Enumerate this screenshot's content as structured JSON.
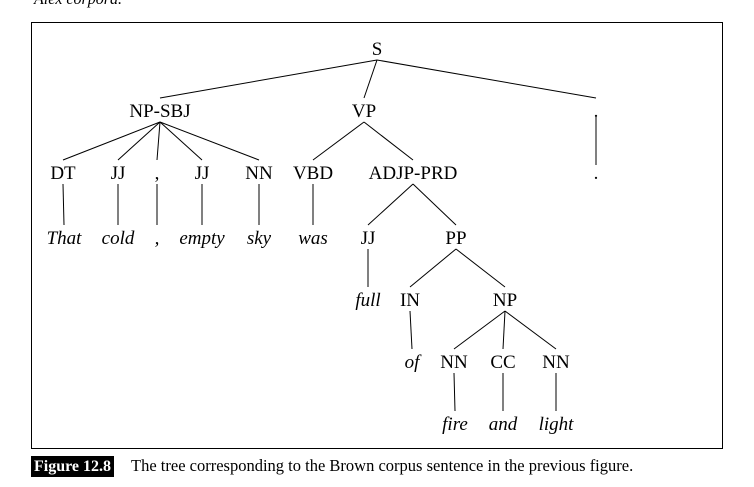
{
  "top_text": "Alex corpora.",
  "figure": {
    "label": "Figure 12.8",
    "caption": "The tree corresponding to the Brown corpus sentence in the previous figure."
  },
  "tree": {
    "nodes": [
      {
        "id": "s",
        "label": "S",
        "kind": "tag"
      },
      {
        "id": "np-sbj",
        "label": "NP-SBJ",
        "kind": "tag"
      },
      {
        "id": "vp",
        "label": "VP",
        "kind": "tag"
      },
      {
        "id": "period-top",
        "label": ".",
        "kind": "tag"
      },
      {
        "id": "dt",
        "label": "DT",
        "kind": "tag"
      },
      {
        "id": "jj1",
        "label": "JJ",
        "kind": "tag"
      },
      {
        "id": "comma-tag",
        "label": ",",
        "kind": "tag"
      },
      {
        "id": "jj2",
        "label": "JJ",
        "kind": "tag"
      },
      {
        "id": "nn1",
        "label": "NN",
        "kind": "tag"
      },
      {
        "id": "vbd",
        "label": "VBD",
        "kind": "tag"
      },
      {
        "id": "adjp-prd",
        "label": "ADJP-PRD",
        "kind": "tag"
      },
      {
        "id": "period-leaf",
        "label": ".",
        "kind": "tag"
      },
      {
        "id": "w-that",
        "label": "That",
        "kind": "leaf"
      },
      {
        "id": "w-cold",
        "label": "cold",
        "kind": "leaf"
      },
      {
        "id": "w-comma",
        "label": ",",
        "kind": "leaf"
      },
      {
        "id": "w-empty",
        "label": "empty",
        "kind": "leaf"
      },
      {
        "id": "w-sky",
        "label": "sky",
        "kind": "leaf"
      },
      {
        "id": "w-was",
        "label": "was",
        "kind": "leaf"
      },
      {
        "id": "jj3",
        "label": "JJ",
        "kind": "tag"
      },
      {
        "id": "pp",
        "label": "PP",
        "kind": "tag"
      },
      {
        "id": "w-full",
        "label": "full",
        "kind": "leaf"
      },
      {
        "id": "in",
        "label": "IN",
        "kind": "tag"
      },
      {
        "id": "np",
        "label": "NP",
        "kind": "tag"
      },
      {
        "id": "w-of",
        "label": "of",
        "kind": "leaf"
      },
      {
        "id": "nn2",
        "label": "NN",
        "kind": "tag"
      },
      {
        "id": "cc",
        "label": "CC",
        "kind": "tag"
      },
      {
        "id": "nn3",
        "label": "NN",
        "kind": "tag"
      },
      {
        "id": "w-fire",
        "label": "fire",
        "kind": "leaf"
      },
      {
        "id": "w-and",
        "label": "and",
        "kind": "leaf"
      },
      {
        "id": "w-light",
        "label": "light",
        "kind": "leaf"
      }
    ],
    "edges": [
      [
        "s",
        "np-sbj"
      ],
      [
        "s",
        "vp"
      ],
      [
        "s",
        "period-top"
      ],
      [
        "np-sbj",
        "dt"
      ],
      [
        "np-sbj",
        "jj1"
      ],
      [
        "np-sbj",
        "comma-tag"
      ],
      [
        "np-sbj",
        "jj2"
      ],
      [
        "np-sbj",
        "nn1"
      ],
      [
        "vp",
        "vbd"
      ],
      [
        "vp",
        "adjp-prd"
      ],
      [
        "period-top",
        "period-leaf"
      ],
      [
        "dt",
        "w-that"
      ],
      [
        "jj1",
        "w-cold"
      ],
      [
        "comma-tag",
        "w-comma"
      ],
      [
        "jj2",
        "w-empty"
      ],
      [
        "nn1",
        "w-sky"
      ],
      [
        "vbd",
        "w-was"
      ],
      [
        "adjp-prd",
        "jj3"
      ],
      [
        "adjp-prd",
        "pp"
      ],
      [
        "jj3",
        "w-full"
      ],
      [
        "pp",
        "in"
      ],
      [
        "pp",
        "np"
      ],
      [
        "in",
        "w-of"
      ],
      [
        "np",
        "nn2"
      ],
      [
        "np",
        "cc"
      ],
      [
        "np",
        "nn3"
      ],
      [
        "nn2",
        "w-fire"
      ],
      [
        "cc",
        "w-and"
      ],
      [
        "nn3",
        "w-light"
      ]
    ]
  }
}
